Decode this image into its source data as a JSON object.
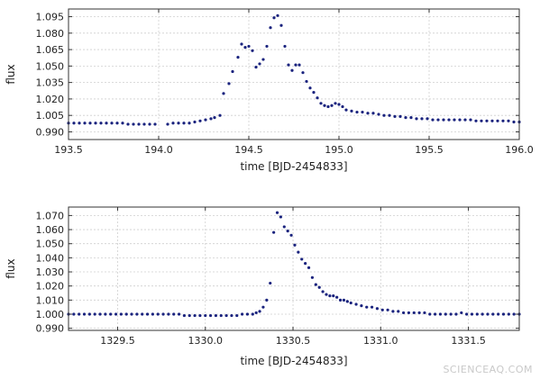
{
  "watermark": "SCIENCEAQ.COM",
  "chart_data": [
    {
      "type": "scatter",
      "xlabel": "time [BJD-2454833]",
      "ylabel": "flux",
      "xlim": [
        193.5,
        196.0
      ],
      "ylim": [
        0.983,
        1.102
      ],
      "x_ticks": [
        193.5,
        194.0,
        194.5,
        195.0,
        195.5,
        196.0
      ],
      "x_tick_labels": [
        "193.5",
        "194.0",
        "194.5",
        "195.0",
        "195.5",
        "196.0"
      ],
      "y_ticks": [
        0.99,
        1.005,
        1.02,
        1.035,
        1.05,
        1.065,
        1.08,
        1.095
      ],
      "y_tick_labels": [
        "0.990",
        "1.005",
        "1.020",
        "1.035",
        "1.050",
        "1.065",
        "1.080",
        "1.095"
      ],
      "grid": true,
      "marker_color": "#1a237e",
      "points": [
        [
          193.5,
          0.998
        ],
        [
          193.53,
          0.998
        ],
        [
          193.56,
          0.998
        ],
        [
          193.59,
          0.998
        ],
        [
          193.62,
          0.998
        ],
        [
          193.65,
          0.998
        ],
        [
          193.68,
          0.998
        ],
        [
          193.71,
          0.998
        ],
        [
          193.74,
          0.998
        ],
        [
          193.77,
          0.998
        ],
        [
          193.8,
          0.998
        ],
        [
          193.83,
          0.997
        ],
        [
          193.86,
          0.997
        ],
        [
          193.89,
          0.997
        ],
        [
          193.92,
          0.997
        ],
        [
          193.95,
          0.997
        ],
        [
          193.98,
          0.997
        ],
        [
          194.05,
          0.997
        ],
        [
          194.08,
          0.998
        ],
        [
          194.11,
          0.998
        ],
        [
          194.14,
          0.998
        ],
        [
          194.17,
          0.998
        ],
        [
          194.2,
          0.999
        ],
        [
          194.23,
          1.0
        ],
        [
          194.26,
          1.001
        ],
        [
          194.29,
          1.002
        ],
        [
          194.31,
          1.003
        ],
        [
          194.34,
          1.005
        ],
        [
          194.36,
          1.025
        ],
        [
          194.39,
          1.034
        ],
        [
          194.41,
          1.045
        ],
        [
          194.44,
          1.058
        ],
        [
          194.46,
          1.07
        ],
        [
          194.48,
          1.067
        ],
        [
          194.5,
          1.068
        ],
        [
          194.52,
          1.064
        ],
        [
          194.54,
          1.049
        ],
        [
          194.56,
          1.052
        ],
        [
          194.58,
          1.056
        ],
        [
          194.6,
          1.068
        ],
        [
          194.62,
          1.085
        ],
        [
          194.64,
          1.094
        ],
        [
          194.66,
          1.096
        ],
        [
          194.68,
          1.087
        ],
        [
          194.7,
          1.068
        ],
        [
          194.72,
          1.051
        ],
        [
          194.74,
          1.046
        ],
        [
          194.76,
          1.051
        ],
        [
          194.78,
          1.051
        ],
        [
          194.8,
          1.044
        ],
        [
          194.82,
          1.036
        ],
        [
          194.84,
          1.03
        ],
        [
          194.86,
          1.026
        ],
        [
          194.88,
          1.021
        ],
        [
          194.9,
          1.016
        ],
        [
          194.92,
          1.014
        ],
        [
          194.94,
          1.013
        ],
        [
          194.96,
          1.014
        ],
        [
          194.98,
          1.016
        ],
        [
          195.0,
          1.015
        ],
        [
          195.02,
          1.013
        ],
        [
          195.04,
          1.01
        ],
        [
          195.07,
          1.009
        ],
        [
          195.1,
          1.008
        ],
        [
          195.13,
          1.008
        ],
        [
          195.16,
          1.007
        ],
        [
          195.19,
          1.007
        ],
        [
          195.22,
          1.006
        ],
        [
          195.25,
          1.005
        ],
        [
          195.28,
          1.005
        ],
        [
          195.31,
          1.004
        ],
        [
          195.34,
          1.004
        ],
        [
          195.37,
          1.003
        ],
        [
          195.4,
          1.003
        ],
        [
          195.43,
          1.002
        ],
        [
          195.46,
          1.002
        ],
        [
          195.49,
          1.002
        ],
        [
          195.52,
          1.001
        ],
        [
          195.55,
          1.001
        ],
        [
          195.58,
          1.001
        ],
        [
          195.61,
          1.001
        ],
        [
          195.64,
          1.001
        ],
        [
          195.67,
          1.001
        ],
        [
          195.7,
          1.001
        ],
        [
          195.73,
          1.001
        ],
        [
          195.76,
          1.0
        ],
        [
          195.79,
          1.0
        ],
        [
          195.82,
          1.0
        ],
        [
          195.85,
          1.0
        ],
        [
          195.88,
          1.0
        ],
        [
          195.91,
          1.0
        ],
        [
          195.94,
          1.0
        ],
        [
          195.97,
          0.999
        ],
        [
          196.0,
          0.999
        ]
      ]
    },
    {
      "type": "scatter",
      "xlabel": "time [BJD-2454833]",
      "ylabel": "flux",
      "xlim": [
        1329.22,
        1331.79
      ],
      "ylim": [
        0.9885,
        1.076
      ],
      "x_ticks": [
        1329.5,
        1330.0,
        1330.5,
        1331.0,
        1331.5
      ],
      "x_tick_labels": [
        "1329.5",
        "1330.0",
        "1330.5",
        "1331.0",
        "1331.5"
      ],
      "y_ticks": [
        0.99,
        1.0,
        1.01,
        1.02,
        1.03,
        1.04,
        1.05,
        1.06,
        1.07
      ],
      "y_tick_labels": [
        "0.990",
        "1.000",
        "1.010",
        "1.020",
        "1.030",
        "1.040",
        "1.050",
        "1.060",
        "1.070"
      ],
      "grid": true,
      "marker_color": "#1a237e",
      "points": [
        [
          1329.22,
          1.0
        ],
        [
          1329.25,
          1.0
        ],
        [
          1329.28,
          1.0
        ],
        [
          1329.31,
          1.0
        ],
        [
          1329.34,
          1.0
        ],
        [
          1329.37,
          1.0
        ],
        [
          1329.4,
          1.0
        ],
        [
          1329.43,
          1.0
        ],
        [
          1329.46,
          1.0
        ],
        [
          1329.49,
          1.0
        ],
        [
          1329.52,
          1.0
        ],
        [
          1329.55,
          1.0
        ],
        [
          1329.58,
          1.0
        ],
        [
          1329.61,
          1.0
        ],
        [
          1329.64,
          1.0
        ],
        [
          1329.67,
          1.0
        ],
        [
          1329.7,
          1.0
        ],
        [
          1329.73,
          1.0
        ],
        [
          1329.76,
          1.0
        ],
        [
          1329.79,
          1.0
        ],
        [
          1329.82,
          1.0
        ],
        [
          1329.85,
          1.0
        ],
        [
          1329.88,
          0.999
        ],
        [
          1329.91,
          0.999
        ],
        [
          1329.94,
          0.999
        ],
        [
          1329.97,
          0.999
        ],
        [
          1330.0,
          0.999
        ],
        [
          1330.03,
          0.999
        ],
        [
          1330.06,
          0.999
        ],
        [
          1330.09,
          0.999
        ],
        [
          1330.12,
          0.999
        ],
        [
          1330.15,
          0.999
        ],
        [
          1330.18,
          0.999
        ],
        [
          1330.21,
          1.0
        ],
        [
          1330.24,
          1.0
        ],
        [
          1330.27,
          1.0
        ],
        [
          1330.29,
          1.001
        ],
        [
          1330.31,
          1.002
        ],
        [
          1330.33,
          1.005
        ],
        [
          1330.35,
          1.01
        ],
        [
          1330.37,
          1.022
        ],
        [
          1330.39,
          1.058
        ],
        [
          1330.41,
          1.072
        ],
        [
          1330.43,
          1.069
        ],
        [
          1330.45,
          1.062
        ],
        [
          1330.47,
          1.059
        ],
        [
          1330.49,
          1.056
        ],
        [
          1330.51,
          1.049
        ],
        [
          1330.53,
          1.044
        ],
        [
          1330.55,
          1.039
        ],
        [
          1330.57,
          1.036
        ],
        [
          1330.59,
          1.033
        ],
        [
          1330.61,
          1.026
        ],
        [
          1330.63,
          1.021
        ],
        [
          1330.65,
          1.019
        ],
        [
          1330.67,
          1.016
        ],
        [
          1330.69,
          1.014
        ],
        [
          1330.71,
          1.013
        ],
        [
          1330.73,
          1.013
        ],
        [
          1330.75,
          1.012
        ],
        [
          1330.77,
          1.01
        ],
        [
          1330.79,
          1.01
        ],
        [
          1330.81,
          1.009
        ],
        [
          1330.83,
          1.008
        ],
        [
          1330.86,
          1.007
        ],
        [
          1330.89,
          1.006
        ],
        [
          1330.92,
          1.005
        ],
        [
          1330.95,
          1.005
        ],
        [
          1330.98,
          1.004
        ],
        [
          1331.01,
          1.003
        ],
        [
          1331.04,
          1.003
        ],
        [
          1331.07,
          1.002
        ],
        [
          1331.1,
          1.002
        ],
        [
          1331.13,
          1.001
        ],
        [
          1331.16,
          1.001
        ],
        [
          1331.19,
          1.001
        ],
        [
          1331.22,
          1.001
        ],
        [
          1331.25,
          1.001
        ],
        [
          1331.28,
          1.0
        ],
        [
          1331.31,
          1.0
        ],
        [
          1331.34,
          1.0
        ],
        [
          1331.37,
          1.0
        ],
        [
          1331.4,
          1.0
        ],
        [
          1331.43,
          1.0
        ],
        [
          1331.46,
          1.001
        ],
        [
          1331.49,
          1.0
        ],
        [
          1331.52,
          1.0
        ],
        [
          1331.55,
          1.0
        ],
        [
          1331.58,
          1.0
        ],
        [
          1331.61,
          1.0
        ],
        [
          1331.64,
          1.0
        ],
        [
          1331.67,
          1.0
        ],
        [
          1331.7,
          1.0
        ],
        [
          1331.73,
          1.0
        ],
        [
          1331.76,
          1.0
        ],
        [
          1331.79,
          1.0
        ]
      ]
    }
  ]
}
